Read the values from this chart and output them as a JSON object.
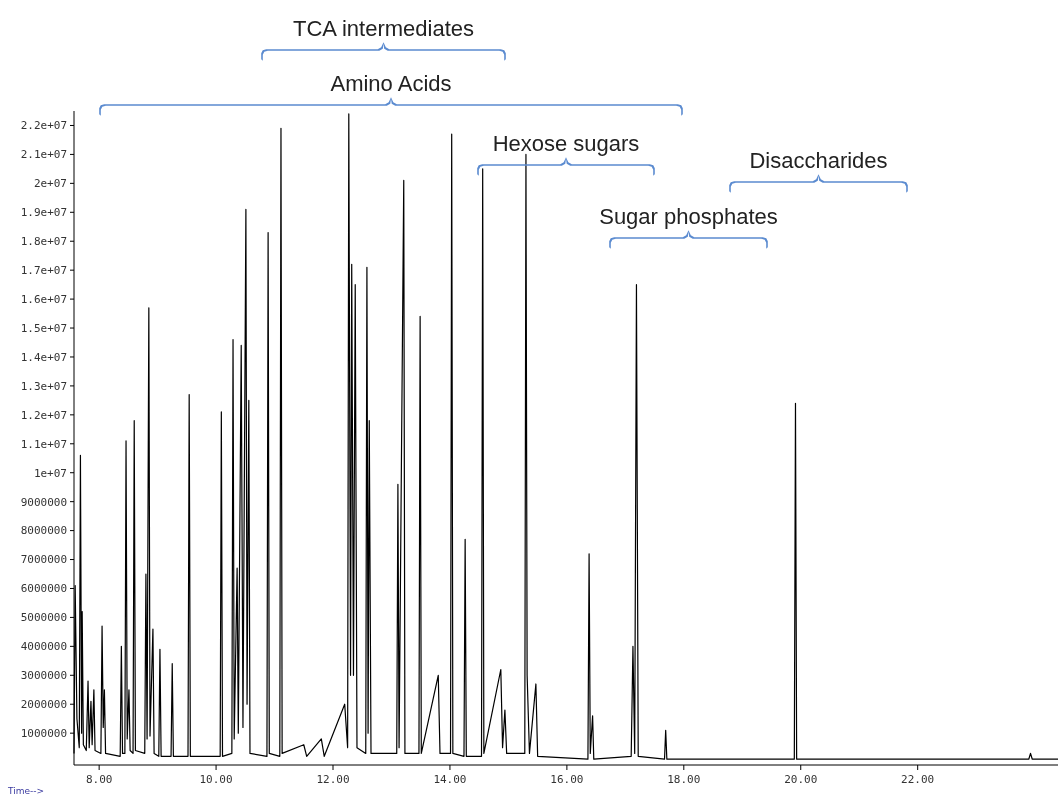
{
  "chart_data": {
    "type": "line",
    "xlabel": "Time-->",
    "xlim": [
      7.57,
      24.4
    ],
    "xticks": [
      {
        "value": 8,
        "label": "8.00"
      },
      {
        "value": 10,
        "label": "10.00"
      },
      {
        "value": 12,
        "label": "12.00"
      },
      {
        "value": 14,
        "label": "14.00"
      },
      {
        "value": 16,
        "label": "16.00"
      },
      {
        "value": 18,
        "label": "18.00"
      },
      {
        "value": 20,
        "label": "20.00"
      },
      {
        "value": 22,
        "label": "22.00"
      }
    ],
    "ylim": [
      -100000,
      22500000
    ],
    "yticks": [
      1000000,
      2000000,
      3000000,
      4000000,
      5000000,
      6000000,
      7000000,
      8000000,
      9000000,
      {
        "value": 10000000,
        "label": "1e+07"
      },
      {
        "value": 11000000,
        "label": "1.1e+07"
      },
      {
        "value": 12000000,
        "label": "1.2e+07"
      },
      {
        "value": 13000000,
        "label": "1.3e+07"
      },
      {
        "value": 14000000,
        "label": "1.4e+07"
      },
      {
        "value": 15000000,
        "label": "1.5e+07"
      },
      {
        "value": 16000000,
        "label": "1.6e+07"
      },
      {
        "value": 17000000,
        "label": "1.7e+07"
      },
      {
        "value": 18000000,
        "label": "1.8e+07"
      },
      {
        "value": 19000000,
        "label": "1.9e+07"
      },
      {
        "value": 20000000,
        "label": "2e+07"
      },
      {
        "value": 21000000,
        "label": "2.1e+07"
      },
      {
        "value": 22000000,
        "label": "2.2e+07"
      }
    ],
    "grid": false,
    "annotations": [
      "TCA intermediates",
      "Amino Acids",
      "Hexose sugars",
      "Disaccharides",
      "Sugar phosphates"
    ],
    "series": [
      {
        "color": "#000000",
        "x": [
          7.57,
          7.59,
          7.62,
          7.66,
          7.68,
          7.7,
          7.71,
          7.73,
          7.78,
          7.81,
          7.83,
          7.86,
          7.88,
          7.91,
          7.93,
          8.03,
          8.05,
          8.07,
          8.09,
          8.11,
          8.36,
          8.38,
          8.4,
          8.44,
          8.46,
          8.48,
          8.51,
          8.53,
          8.58,
          8.6,
          8.62,
          8.78,
          8.8,
          8.82,
          8.85,
          8.87,
          8.92,
          8.94,
          9.02,
          9.04,
          9.06,
          9.23,
          9.25,
          9.27,
          9.52,
          9.54,
          9.56,
          10.07,
          10.09,
          10.11,
          10.27,
          10.29,
          10.31,
          10.36,
          10.38,
          10.43,
          10.46,
          10.51,
          10.53,
          10.56,
          10.58,
          10.87,
          10.89,
          10.91,
          11.09,
          11.11,
          11.13,
          11.5,
          11.55,
          11.8,
          11.85,
          12.2,
          12.25,
          12.27,
          12.3,
          12.32,
          12.35,
          12.38,
          12.41,
          12.56,
          12.58,
          12.6,
          12.62,
          12.65,
          13.09,
          13.11,
          13.13,
          13.21,
          13.23,
          13.47,
          13.49,
          13.51,
          13.8,
          13.83,
          14.01,
          14.03,
          14.05,
          14.24,
          14.26,
          14.28,
          14.54,
          14.56,
          14.58,
          14.87,
          14.9,
          14.94,
          14.97,
          15.28,
          15.3,
          15.32,
          15.36,
          15.47,
          15.5,
          16.36,
          16.38,
          16.4,
          16.44,
          16.46,
          17.1,
          17.13,
          17.16,
          17.19,
          17.22,
          17.67,
          17.69,
          17.71,
          19.89,
          19.91,
          19.93,
          23.9,
          23.93,
          23.96,
          24.4
        ],
        "values": [
          300000,
          6100000,
          1500000,
          500000,
          10600000,
          1000000,
          5200000,
          600000,
          400000,
          2800000,
          500000,
          2100000,
          600000,
          2500000,
          400000,
          300000,
          4700000,
          1200000,
          2500000,
          300000,
          200000,
          4000000,
          300000,
          300000,
          11100000,
          800000,
          2500000,
          400000,
          300000,
          11800000,
          400000,
          300000,
          6500000,
          800000,
          15700000,
          900000,
          4600000,
          300000,
          200000,
          3900000,
          200000,
          200000,
          3400000,
          200000,
          200000,
          12700000,
          200000,
          200000,
          12100000,
          200000,
          300000,
          14600000,
          800000,
          6700000,
          1000000,
          14400000,
          1200000,
          19100000,
          2000000,
          12500000,
          300000,
          200000,
          18300000,
          300000,
          200000,
          21900000,
          300000,
          600000,
          200000,
          800000,
          200000,
          2000000,
          500000,
          22400000,
          3000000,
          17200000,
          3000000,
          16500000,
          500000,
          300000,
          17100000,
          1000000,
          11800000,
          300000,
          300000,
          9600000,
          500000,
          20100000,
          300000,
          300000,
          15400000,
          300000,
          3000000,
          300000,
          300000,
          21700000,
          300000,
          200000,
          7700000,
          200000,
          200000,
          20500000,
          300000,
          3200000,
          500000,
          1800000,
          300000,
          300000,
          21000000,
          3000000,
          300000,
          2700000,
          200000,
          100000,
          7200000,
          300000,
          1600000,
          100000,
          200000,
          4000000,
          300000,
          16500000,
          200000,
          100000,
          1100000,
          100000,
          100000,
          12400000,
          100000,
          100000,
          300000,
          100000,
          100000
        ]
      }
    ]
  }
}
